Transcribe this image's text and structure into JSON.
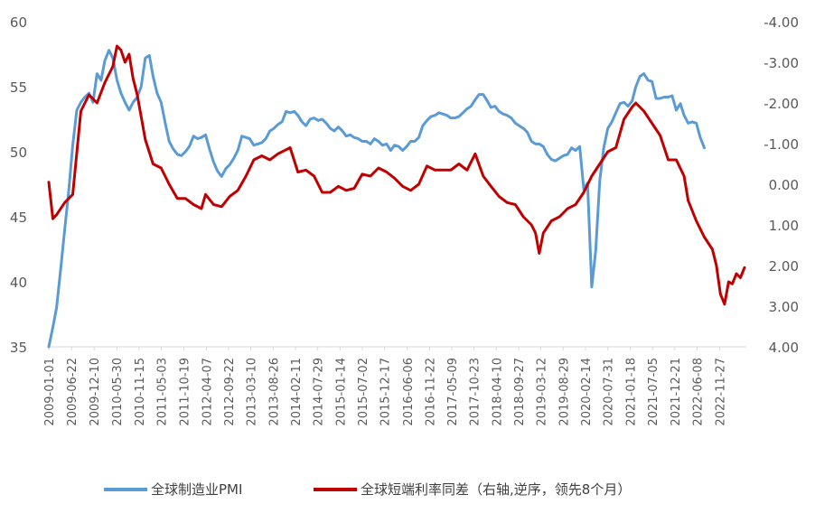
{
  "chart_data": {
    "type": "line",
    "title": "",
    "legend_position": "bottom",
    "grid": false,
    "x_ticks": [
      "2009-01-01",
      "2009-06-22",
      "2009-12-10",
      "2010-05-30",
      "2010-11-15",
      "2011-05-03",
      "2011-10-19",
      "2012-04-07",
      "2012-09-22",
      "2013-03-10",
      "2013-08-26",
      "2014-02-11",
      "2014-07-29",
      "2015-01-14",
      "2015-07-02",
      "2015-12-17",
      "2016-06-06",
      "2016-11-22",
      "2017-05-09",
      "2017-10-23",
      "2018-04-10",
      "2018-09-27",
      "2019-03-12",
      "2019-08-29",
      "2020-02-14",
      "2020-07-31",
      "2021-01-18",
      "2021-07-05",
      "2021-12-21",
      "2022-06-08",
      "2022-11-27"
    ],
    "x_range": [
      "2009-01-01",
      "2023-06-15"
    ],
    "y_left": {
      "ticks": [
        "35",
        "40",
        "45",
        "50",
        "55",
        "60"
      ],
      "range": [
        35,
        60
      ]
    },
    "y_right": {
      "ticks": [
        "-4.00",
        "-3.00",
        "-2.00",
        "-1.00",
        "0.00",
        "1.00",
        "2.00",
        "3.00",
        "4.00"
      ],
      "range": [
        -4,
        4
      ],
      "reversed": true
    },
    "series": [
      {
        "name": "全球制造业PMI",
        "color": "#5B9BD5",
        "axis": "left",
        "points": [
          [
            "2009-01-01",
            35.0
          ],
          [
            "2009-02-01",
            36.5
          ],
          [
            "2009-03-01",
            38.0
          ],
          [
            "2009-04-01",
            41.0
          ],
          [
            "2009-05-01",
            44.0
          ],
          [
            "2009-06-01",
            47.0
          ],
          [
            "2009-07-01",
            50.5
          ],
          [
            "2009-08-01",
            53.2
          ],
          [
            "2009-09-01",
            53.8
          ],
          [
            "2009-10-01",
            54.2
          ],
          [
            "2009-11-01",
            54.5
          ],
          [
            "2009-12-01",
            53.8
          ],
          [
            "2010-01-01",
            56.0
          ],
          [
            "2010-02-01",
            55.5
          ],
          [
            "2010-03-01",
            57.0
          ],
          [
            "2010-04-01",
            57.8
          ],
          [
            "2010-05-01",
            57.2
          ],
          [
            "2010-06-01",
            55.5
          ],
          [
            "2010-07-01",
            54.5
          ],
          [
            "2010-08-01",
            53.8
          ],
          [
            "2010-09-01",
            53.2
          ],
          [
            "2010-10-01",
            53.8
          ],
          [
            "2010-11-01",
            54.2
          ],
          [
            "2010-12-01",
            55.0
          ],
          [
            "2011-01-01",
            57.2
          ],
          [
            "2011-02-01",
            57.4
          ],
          [
            "2011-03-01",
            55.8
          ],
          [
            "2011-04-01",
            54.5
          ],
          [
            "2011-05-01",
            53.8
          ],
          [
            "2011-06-01",
            52.2
          ],
          [
            "2011-07-01",
            50.8
          ],
          [
            "2011-08-01",
            50.2
          ],
          [
            "2011-09-01",
            49.8
          ],
          [
            "2011-10-01",
            49.7
          ],
          [
            "2011-11-01",
            50.0
          ],
          [
            "2011-12-01",
            50.4
          ],
          [
            "2012-01-01",
            51.2
          ],
          [
            "2012-02-01",
            51.0
          ],
          [
            "2012-03-01",
            51.1
          ],
          [
            "2012-04-01",
            51.3
          ],
          [
            "2012-05-01",
            50.2
          ],
          [
            "2012-06-01",
            49.2
          ],
          [
            "2012-07-01",
            48.5
          ],
          [
            "2012-08-01",
            48.1
          ],
          [
            "2012-09-01",
            48.7
          ],
          [
            "2012-10-01",
            49.0
          ],
          [
            "2012-11-01",
            49.5
          ],
          [
            "2012-12-01",
            50.1
          ],
          [
            "2013-01-01",
            51.2
          ],
          [
            "2013-02-01",
            51.1
          ],
          [
            "2013-03-01",
            51.0
          ],
          [
            "2013-04-01",
            50.5
          ],
          [
            "2013-05-01",
            50.6
          ],
          [
            "2013-06-01",
            50.7
          ],
          [
            "2013-07-01",
            51.0
          ],
          [
            "2013-08-01",
            51.6
          ],
          [
            "2013-09-01",
            51.8
          ],
          [
            "2013-10-01",
            52.1
          ],
          [
            "2013-11-01",
            52.3
          ],
          [
            "2013-12-01",
            53.1
          ],
          [
            "2014-01-01",
            53.0
          ],
          [
            "2014-02-01",
            53.1
          ],
          [
            "2014-03-01",
            52.8
          ],
          [
            "2014-04-01",
            52.3
          ],
          [
            "2014-05-01",
            52.0
          ],
          [
            "2014-06-01",
            52.5
          ],
          [
            "2014-07-01",
            52.6
          ],
          [
            "2014-08-01",
            52.4
          ],
          [
            "2014-09-01",
            52.5
          ],
          [
            "2014-10-01",
            52.2
          ],
          [
            "2014-11-01",
            51.8
          ],
          [
            "2014-12-01",
            51.6
          ],
          [
            "2015-01-01",
            51.9
          ],
          [
            "2015-02-01",
            51.6
          ],
          [
            "2015-03-01",
            51.2
          ],
          [
            "2015-04-01",
            51.3
          ],
          [
            "2015-05-01",
            51.1
          ],
          [
            "2015-06-01",
            51.0
          ],
          [
            "2015-07-01",
            50.8
          ],
          [
            "2015-08-01",
            50.8
          ],
          [
            "2015-09-01",
            50.6
          ],
          [
            "2015-10-01",
            51.0
          ],
          [
            "2015-11-01",
            50.8
          ],
          [
            "2015-12-01",
            50.5
          ],
          [
            "2016-01-01",
            50.6
          ],
          [
            "2016-02-01",
            50.1
          ],
          [
            "2016-03-01",
            50.5
          ],
          [
            "2016-04-01",
            50.4
          ],
          [
            "2016-05-01",
            50.1
          ],
          [
            "2016-06-01",
            50.4
          ],
          [
            "2016-07-01",
            50.8
          ],
          [
            "2016-08-01",
            50.8
          ],
          [
            "2016-09-01",
            51.1
          ],
          [
            "2016-10-01",
            52.0
          ],
          [
            "2016-11-01",
            52.4
          ],
          [
            "2016-12-01",
            52.7
          ],
          [
            "2017-01-01",
            52.8
          ],
          [
            "2017-02-01",
            53.0
          ],
          [
            "2017-03-01",
            52.9
          ],
          [
            "2017-04-01",
            52.8
          ],
          [
            "2017-05-01",
            52.6
          ],
          [
            "2017-06-01",
            52.6
          ],
          [
            "2017-07-01",
            52.7
          ],
          [
            "2017-08-01",
            53.0
          ],
          [
            "2017-09-01",
            53.3
          ],
          [
            "2017-10-01",
            53.5
          ],
          [
            "2017-11-01",
            54.0
          ],
          [
            "2017-12-01",
            54.4
          ],
          [
            "2018-01-01",
            54.4
          ],
          [
            "2018-02-01",
            53.9
          ],
          [
            "2018-03-01",
            53.4
          ],
          [
            "2018-04-01",
            53.5
          ],
          [
            "2018-05-01",
            53.1
          ],
          [
            "2018-06-01",
            52.9
          ],
          [
            "2018-07-01",
            52.8
          ],
          [
            "2018-08-01",
            52.6
          ],
          [
            "2018-09-01",
            52.2
          ],
          [
            "2018-10-01",
            52.0
          ],
          [
            "2018-11-01",
            51.8
          ],
          [
            "2018-12-01",
            51.5
          ],
          [
            "2019-01-01",
            50.8
          ],
          [
            "2019-02-01",
            50.6
          ],
          [
            "2019-03-01",
            50.6
          ],
          [
            "2019-04-01",
            50.4
          ],
          [
            "2019-05-01",
            49.8
          ],
          [
            "2019-06-01",
            49.4
          ],
          [
            "2019-07-01",
            49.3
          ],
          [
            "2019-08-01",
            49.5
          ],
          [
            "2019-09-01",
            49.7
          ],
          [
            "2019-10-01",
            49.8
          ],
          [
            "2019-11-01",
            50.3
          ],
          [
            "2019-12-01",
            50.1
          ],
          [
            "2020-01-01",
            50.4
          ],
          [
            "2020-02-01",
            47.1
          ],
          [
            "2020-03-01",
            47.6
          ],
          [
            "2020-04-01",
            39.6
          ],
          [
            "2020-05-01",
            42.4
          ],
          [
            "2020-06-01",
            47.8
          ],
          [
            "2020-07-01",
            50.3
          ],
          [
            "2020-08-01",
            51.8
          ],
          [
            "2020-09-01",
            52.3
          ],
          [
            "2020-10-01",
            53.0
          ],
          [
            "2020-11-01",
            53.7
          ],
          [
            "2020-12-01",
            53.8
          ],
          [
            "2021-01-01",
            53.5
          ],
          [
            "2021-02-01",
            53.9
          ],
          [
            "2021-03-01",
            55.0
          ],
          [
            "2021-04-01",
            55.8
          ],
          [
            "2021-05-01",
            56.0
          ],
          [
            "2021-06-01",
            55.5
          ],
          [
            "2021-07-01",
            55.4
          ],
          [
            "2021-08-01",
            54.1
          ],
          [
            "2021-09-01",
            54.1
          ],
          [
            "2021-10-01",
            54.2
          ],
          [
            "2021-11-01",
            54.2
          ],
          [
            "2021-12-01",
            54.3
          ],
          [
            "2022-01-01",
            53.2
          ],
          [
            "2022-02-01",
            53.7
          ],
          [
            "2022-03-01",
            52.8
          ],
          [
            "2022-04-01",
            52.2
          ],
          [
            "2022-05-01",
            52.3
          ],
          [
            "2022-06-01",
            52.2
          ],
          [
            "2022-07-01",
            51.1
          ],
          [
            "2022-08-01",
            50.3
          ]
        ]
      },
      {
        "name": "全球短端利率同差（右轴,逆序，领先8个月）",
        "color": "#C00000",
        "axis": "right",
        "points": [
          [
            "2009-01-01",
            -0.05
          ],
          [
            "2009-02-01",
            0.85
          ],
          [
            "2009-03-01",
            0.75
          ],
          [
            "2009-05-01",
            0.45
          ],
          [
            "2009-07-01",
            0.25
          ],
          [
            "2009-09-01",
            -1.8
          ],
          [
            "2009-11-01",
            -2.2
          ],
          [
            "2010-01-01",
            -2.0
          ],
          [
            "2010-03-01",
            -2.5
          ],
          [
            "2010-05-01",
            -2.9
          ],
          [
            "2010-06-01",
            -3.4
          ],
          [
            "2010-07-01",
            -3.3
          ],
          [
            "2010-08-01",
            -3.0
          ],
          [
            "2010-09-01",
            -3.2
          ],
          [
            "2010-10-01",
            -2.6
          ],
          [
            "2010-11-01",
            -2.2
          ],
          [
            "2011-01-01",
            -1.1
          ],
          [
            "2011-03-01",
            -0.5
          ],
          [
            "2011-05-01",
            -0.4
          ],
          [
            "2011-07-01",
            0.0
          ],
          [
            "2011-09-01",
            0.35
          ],
          [
            "2011-11-01",
            0.35
          ],
          [
            "2012-01-01",
            0.5
          ],
          [
            "2012-03-01",
            0.6
          ],
          [
            "2012-04-01",
            0.25
          ],
          [
            "2012-06-01",
            0.5
          ],
          [
            "2012-08-01",
            0.55
          ],
          [
            "2012-10-01",
            0.3
          ],
          [
            "2012-12-01",
            0.15
          ],
          [
            "2013-02-01",
            -0.2
          ],
          [
            "2013-04-01",
            -0.6
          ],
          [
            "2013-06-01",
            -0.7
          ],
          [
            "2013-08-01",
            -0.6
          ],
          [
            "2013-10-01",
            -0.75
          ],
          [
            "2013-12-01",
            -0.85
          ],
          [
            "2014-01-01",
            -0.9
          ],
          [
            "2014-03-01",
            -0.3
          ],
          [
            "2014-05-01",
            -0.35
          ],
          [
            "2014-07-01",
            -0.2
          ],
          [
            "2014-09-01",
            0.2
          ],
          [
            "2014-11-01",
            0.2
          ],
          [
            "2015-01-01",
            0.05
          ],
          [
            "2015-03-01",
            0.15
          ],
          [
            "2015-05-01",
            0.1
          ],
          [
            "2015-07-01",
            -0.25
          ],
          [
            "2015-09-01",
            -0.2
          ],
          [
            "2015-11-01",
            -0.4
          ],
          [
            "2016-01-01",
            -0.3
          ],
          [
            "2016-03-01",
            -0.15
          ],
          [
            "2016-05-01",
            0.05
          ],
          [
            "2016-07-01",
            0.15
          ],
          [
            "2016-09-01",
            0.0
          ],
          [
            "2016-11-01",
            -0.45
          ],
          [
            "2017-01-01",
            -0.35
          ],
          [
            "2017-03-01",
            -0.35
          ],
          [
            "2017-05-01",
            -0.35
          ],
          [
            "2017-07-01",
            -0.5
          ],
          [
            "2017-09-01",
            -0.35
          ],
          [
            "2017-11-01",
            -0.75
          ],
          [
            "2018-01-01",
            -0.2
          ],
          [
            "2018-03-01",
            0.05
          ],
          [
            "2018-05-01",
            0.3
          ],
          [
            "2018-07-01",
            0.45
          ],
          [
            "2018-09-01",
            0.5
          ],
          [
            "2018-11-01",
            0.8
          ],
          [
            "2019-01-01",
            1.0
          ],
          [
            "2019-02-01",
            1.2
          ],
          [
            "2019-03-01",
            1.7
          ],
          [
            "2019-04-01",
            1.2
          ],
          [
            "2019-06-01",
            0.9
          ],
          [
            "2019-08-01",
            0.8
          ],
          [
            "2019-10-01",
            0.6
          ],
          [
            "2019-12-01",
            0.5
          ],
          [
            "2020-02-01",
            0.2
          ],
          [
            "2020-04-01",
            -0.2
          ],
          [
            "2020-06-01",
            -0.5
          ],
          [
            "2020-08-01",
            -0.8
          ],
          [
            "2020-10-01",
            -0.9
          ],
          [
            "2020-12-01",
            -1.6
          ],
          [
            "2021-02-01",
            -1.9
          ],
          [
            "2021-03-01",
            -2.0
          ],
          [
            "2021-05-01",
            -1.8
          ],
          [
            "2021-07-01",
            -1.5
          ],
          [
            "2021-09-01",
            -1.2
          ],
          [
            "2021-11-01",
            -0.6
          ],
          [
            "2022-01-01",
            -0.6
          ],
          [
            "2022-03-01",
            -0.2
          ],
          [
            "2022-04-01",
            0.4
          ],
          [
            "2022-06-01",
            0.9
          ],
          [
            "2022-08-01",
            1.3
          ],
          [
            "2022-10-01",
            1.6
          ],
          [
            "2022-11-01",
            2.0
          ],
          [
            "2022-12-01",
            2.7
          ],
          [
            "2023-01-01",
            2.95
          ],
          [
            "2023-02-01",
            2.4
          ],
          [
            "2023-03-01",
            2.45
          ],
          [
            "2023-04-01",
            2.2
          ],
          [
            "2023-05-01",
            2.3
          ],
          [
            "2023-06-01",
            2.05
          ]
        ]
      }
    ]
  }
}
